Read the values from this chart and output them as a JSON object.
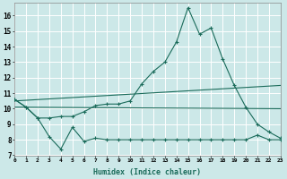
{
  "xlabel": "Humidex (Indice chaleur)",
  "bg_color": "#cce8e8",
  "grid_color": "#b0d8d8",
  "line_color": "#1a6b5a",
  "x_ticks": [
    0,
    1,
    2,
    3,
    4,
    5,
    6,
    7,
    8,
    9,
    10,
    11,
    12,
    13,
    14,
    15,
    16,
    17,
    18,
    19,
    20,
    21,
    22,
    23
  ],
  "y_ticks": [
    7,
    8,
    9,
    10,
    11,
    12,
    13,
    14,
    15,
    16
  ],
  "xlim": [
    0,
    23
  ],
  "ylim": [
    7,
    16.8
  ],
  "series1_y": [
    10.6,
    10.1,
    9.4,
    8.2,
    7.4,
    8.8,
    7.9,
    8.1,
    8.0,
    8.0,
    8.0,
    8.0,
    8.0,
    8.0,
    8.0,
    8.0,
    8.0,
    8.0,
    8.0,
    8.0,
    8.0,
    8.3,
    8.0,
    8.0
  ],
  "series2_y": [
    10.6,
    10.1,
    9.4,
    9.4,
    9.5,
    9.5,
    9.8,
    10.2,
    10.3,
    10.3,
    10.5,
    11.6,
    12.4,
    13.0,
    14.3,
    16.5,
    14.8,
    15.2,
    13.2,
    11.5,
    10.1,
    9.0,
    8.5,
    8.1
  ],
  "trend1_x": [
    0,
    23
  ],
  "trend1_y": [
    10.5,
    11.5
  ],
  "trend2_x": [
    0,
    23
  ],
  "trend2_y": [
    10.1,
    10.0
  ]
}
